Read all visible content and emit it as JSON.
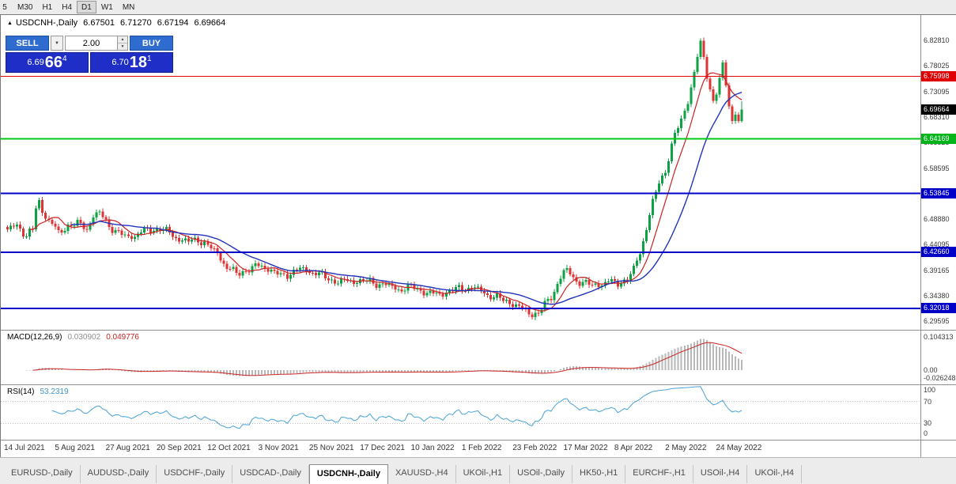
{
  "palette": {
    "bull": "#0ca143",
    "bear": "#dd3333",
    "ma_fast": "#cc2222",
    "ma_slow": "#2233bb",
    "hline_red": "#e00000",
    "hline_green": "#00c814",
    "hline_blue": "#0000c8",
    "macd_hist": "#b8b8b8",
    "macd_signal": "#cc2222",
    "rsi_line": "#4aa3d6",
    "badge_current": "#000000",
    "trade_button_blue": "#2e6cd0",
    "price_panel_blue": "#1e2ec6"
  },
  "toolbar": {
    "timeframes": [
      "5",
      "M30",
      "H1",
      "H4",
      "D1",
      "W1",
      "MN"
    ],
    "active": "D1"
  },
  "chart_header": {
    "symbol_line": "USDCNH-,Daily",
    "open": "6.67501",
    "high": "6.71270",
    "low": "6.67194",
    "close": "6.69664"
  },
  "trade_widget": {
    "sell_label": "SELL",
    "buy_label": "BUY",
    "volume": "2.00",
    "sell_price_prefix": "6.69",
    "sell_price_big": "66",
    "sell_price_sup": "4",
    "buy_price_prefix": "6.70",
    "buy_price_big": "18",
    "buy_price_sup": "1"
  },
  "price_axis": {
    "labels": [
      {
        "text": "6.82810",
        "price": 6.8281
      },
      {
        "text": "6.78025",
        "price": 6.78025
      },
      {
        "text": "6.73095",
        "price": 6.73095
      },
      {
        "text": "6.68310",
        "price": 6.6831
      },
      {
        "text": "6.63525",
        "price": 6.63525
      },
      {
        "text": "6.58595",
        "price": 6.58595
      },
      {
        "text": "6.48880",
        "price": 6.4888
      },
      {
        "text": "6.44095",
        "price": 6.44095
      },
      {
        "text": "6.39165",
        "price": 6.39165
      },
      {
        "text": "6.34380",
        "price": 6.3438
      },
      {
        "text": "6.29595",
        "price": 6.29595
      }
    ],
    "badges": [
      {
        "text": "6.75998",
        "price": 6.75998,
        "color": "#e00000"
      },
      {
        "text": "6.69664",
        "price": 6.69664,
        "color": "#000000"
      },
      {
        "text": "6.64169",
        "price": 6.64169,
        "color": "#00b41a"
      },
      {
        "text": "6.53845",
        "price": 6.53845,
        "color": "#0000c8"
      },
      {
        "text": "6.42660",
        "price": 6.4266,
        "color": "#0000c8"
      },
      {
        "text": "6.32018",
        "price": 6.32018,
        "color": "#0000c8"
      }
    ]
  },
  "hlines": [
    {
      "price": 6.75998,
      "color": "#e00000",
      "width": 1
    },
    {
      "price": 6.64169,
      "color": "#00c814",
      "width": 2
    },
    {
      "price": 6.53845,
      "color": "#0000c8",
      "width": 2
    },
    {
      "price": 6.4266,
      "color": "#0000c8",
      "width": 2
    },
    {
      "price": 6.32018,
      "color": "#0000c8",
      "width": 2
    }
  ],
  "macd_panel": {
    "title": "MACD(12,26,9)",
    "value_main": "0.030902",
    "value_signal": "0.049776",
    "axis": [
      {
        "text": "0.104313",
        "value": 0.104313
      },
      {
        "text": "0.00",
        "value": 0
      },
      {
        "text": "-0.026248",
        "value": -0.026248
      }
    ]
  },
  "rsi_panel": {
    "title": "RSI(14)",
    "value": "53.2319",
    "axis": [
      {
        "text": "100",
        "value": 100
      },
      {
        "text": "70",
        "value": 70
      },
      {
        "text": "30",
        "value": 30
      },
      {
        "text": "0",
        "value": 0
      }
    ],
    "levels": [
      70,
      30
    ]
  },
  "date_axis": [
    "14 Jul 2021",
    "5 Aug 2021",
    "27 Aug 2021",
    "20 Sep 2021",
    "12 Oct 2021",
    "3 Nov 2021",
    "25 Nov 2021",
    "17 Dec 2021",
    "10 Jan 2022",
    "1 Feb 2022",
    "23 Feb 2022",
    "17 Mar 2022",
    "8 Apr 2022",
    "2 May 2022",
    "24 May 2022"
  ],
  "tabs": {
    "active": "USDCNH-,Daily",
    "items": [
      "EURUSD-,Daily",
      "AUDUSD-,Daily",
      "USDCHF-,Daily",
      "USDCAD-,Daily",
      "USDCNH-,Daily",
      "XAUUSD-,H4",
      "UKOil-,H1",
      "USOil-,Daily",
      "HK50-,H1",
      "EURCHF-,H1",
      "USOil-,H4",
      "UKOil-,H4"
    ],
    "note": "tab order as rendered left to right"
  },
  "chart_data": {
    "type": "candlestick",
    "symbol": "USDCNH-",
    "timeframe": "Daily",
    "ohlc_current": {
      "open": 6.67501,
      "high": 6.7127,
      "low": 6.67194,
      "close": 6.69664
    },
    "visible_range": {
      "price_top": 6.876,
      "price_bottom": 6.2797
    },
    "candle_count": 232,
    "close_anchors": [
      [
        0,
        6.468
      ],
      [
        3,
        6.478
      ],
      [
        6,
        6.459
      ],
      [
        8,
        6.468
      ],
      [
        9,
        6.51
      ],
      [
        10,
        6.522
      ],
      [
        11,
        6.505
      ],
      [
        13,
        6.488
      ],
      [
        16,
        6.462
      ],
      [
        19,
        6.478
      ],
      [
        22,
        6.48
      ],
      [
        25,
        6.472
      ],
      [
        27,
        6.495
      ],
      [
        29,
        6.5
      ],
      [
        32,
        6.478
      ],
      [
        35,
        6.462
      ],
      [
        38,
        6.455
      ],
      [
        41,
        6.462
      ],
      [
        44,
        6.468
      ],
      [
        48,
        6.472
      ],
      [
        51,
        6.462
      ],
      [
        54,
        6.452
      ],
      [
        57,
        6.446
      ],
      [
        60,
        6.452
      ],
      [
        63,
        6.438
      ],
      [
        66,
        6.425
      ],
      [
        69,
        6.398
      ],
      [
        72,
        6.386
      ],
      [
        75,
        6.392
      ],
      [
        78,
        6.398
      ],
      [
        80,
        6.402
      ],
      [
        83,
        6.392
      ],
      [
        86,
        6.381
      ],
      [
        89,
        6.388
      ],
      [
        92,
        6.394
      ],
      [
        96,
        6.39
      ],
      [
        99,
        6.381
      ],
      [
        102,
        6.374
      ],
      [
        105,
        6.37
      ],
      [
        108,
        6.373
      ],
      [
        112,
        6.372
      ],
      [
        115,
        6.369
      ],
      [
        118,
        6.366
      ],
      [
        121,
        6.36
      ],
      [
        124,
        6.357
      ],
      [
        128,
        6.36
      ],
      [
        131,
        6.352
      ],
      [
        134,
        6.346
      ],
      [
        137,
        6.35
      ],
      [
        140,
        6.354
      ],
      [
        144,
        6.36
      ],
      [
        147,
        6.358
      ],
      [
        150,
        6.35
      ],
      [
        153,
        6.342
      ],
      [
        156,
        6.336
      ],
      [
        159,
        6.33
      ],
      [
        162,
        6.318
      ],
      [
        165,
        6.31
      ],
      [
        167,
        6.312
      ],
      [
        169,
        6.326
      ],
      [
        171,
        6.342
      ],
      [
        173,
        6.368
      ],
      [
        175,
        6.388
      ],
      [
        176,
        6.392
      ],
      [
        178,
        6.378
      ],
      [
        181,
        6.368
      ],
      [
        184,
        6.364
      ],
      [
        187,
        6.368
      ],
      [
        190,
        6.37
      ],
      [
        192,
        6.368
      ],
      [
        195,
        6.376
      ],
      [
        197,
        6.392
      ],
      [
        199,
        6.428
      ],
      [
        201,
        6.472
      ],
      [
        203,
        6.522
      ],
      [
        205,
        6.556
      ],
      [
        207,
        6.584
      ],
      [
        208,
        6.606
      ],
      [
        210,
        6.648
      ],
      [
        212,
        6.676
      ],
      [
        214,
        6.714
      ],
      [
        216,
        6.768
      ],
      [
        218,
        6.82
      ],
      [
        219,
        6.796
      ],
      [
        220,
        6.762
      ],
      [
        221,
        6.736
      ],
      [
        222,
        6.714
      ],
      [
        223,
        6.73
      ],
      [
        224,
        6.752
      ],
      [
        225,
        6.778
      ],
      [
        226,
        6.744
      ],
      [
        227,
        6.706
      ],
      [
        228,
        6.678
      ],
      [
        229,
        6.692
      ],
      [
        230,
        6.67501
      ],
      [
        231,
        6.69664
      ]
    ],
    "indicators": {
      "ma_fast_period": 8,
      "ma_slow_period": 21,
      "macd_params": [
        12,
        26,
        9
      ],
      "macd_current": 0.030902,
      "macd_signal_current": 0.049776,
      "rsi_period": 14,
      "rsi_current": 53.2319
    },
    "horizontal_levels": [
      6.75998,
      6.64169,
      6.53845,
      6.4266,
      6.32018
    ]
  }
}
